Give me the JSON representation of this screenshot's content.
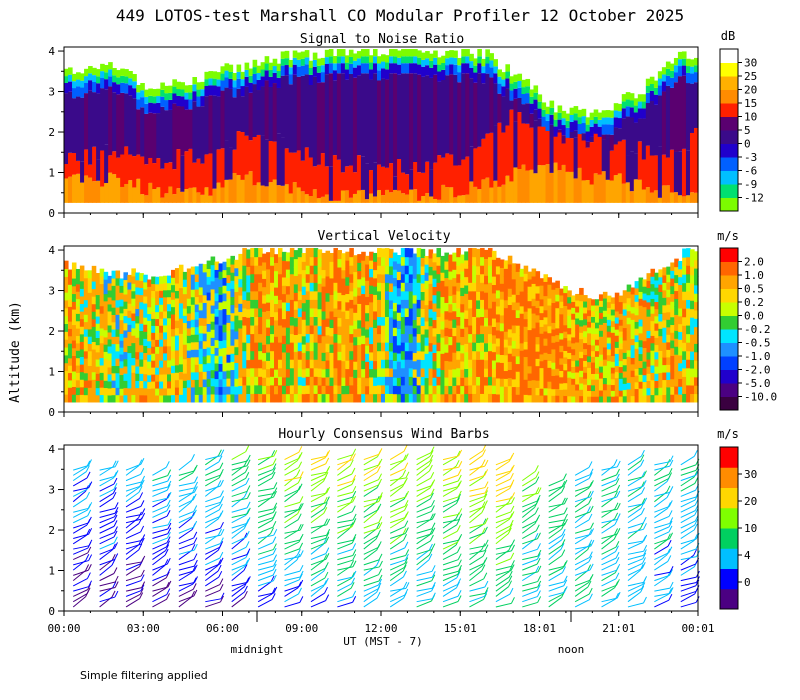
{
  "title": "449 LOTOS-test Marshall CO Modular Profiler 12 October 2025",
  "y_axis_label": "Altitude (km)",
  "x_axis": {
    "label": "UT  (MST - 7)",
    "ticks": [
      "00:00",
      "03:00",
      "06:00",
      "09:00",
      "12:00",
      "15:01",
      "18:01",
      "21:01",
      "00:01"
    ],
    "sublabels": [
      "midnight",
      "noon"
    ]
  },
  "footnote": "Simple filtering applied",
  "chart_data": [
    {
      "type": "heatmap",
      "name": "snr",
      "title": "Signal to Noise Ratio",
      "ylabel": "Altitude (km)",
      "ylim": [
        0,
        4.1
      ],
      "yticks": [
        "0",
        "1",
        "2",
        "3",
        "4"
      ],
      "colorbar": {
        "unit": "dB",
        "labels": [
          "-12",
          "-9",
          "-6",
          "-3",
          "0",
          "5",
          "10",
          "15",
          "20",
          "25",
          "30"
        ],
        "colors": [
          "#7cfc00",
          "#00e070",
          "#00bfff",
          "#0060ff",
          "#2000cc",
          "#3a0a8a",
          "#5a0070",
          "#ff2000",
          "#ff8c00",
          "#ffb000",
          "#ffff00",
          "#ffffff"
        ]
      },
      "profile": {
        "hours": [
          0,
          1,
          2,
          3,
          4,
          5,
          6,
          7,
          8,
          9,
          10,
          11,
          12,
          13,
          14,
          15,
          16,
          17,
          18,
          19,
          20,
          21,
          22,
          23,
          24
        ],
        "top_km": [
          3.5,
          3.6,
          3.7,
          3.2,
          3.1,
          3.3,
          3.5,
          3.7,
          3.8,
          3.9,
          4.0,
          4.0,
          4.0,
          4.0,
          4.0,
          4.0,
          3.9,
          3.5,
          2.9,
          2.5,
          2.5,
          2.7,
          3.1,
          3.8,
          4.0
        ],
        "red_top_km": [
          1.3,
          1.4,
          1.5,
          1.4,
          1.3,
          1.4,
          1.6,
          1.9,
          2.0,
          1.5,
          1.3,
          1.2,
          1.1,
          1.1,
          1.2,
          1.4,
          1.8,
          2.4,
          2.2,
          1.9,
          1.8,
          1.7,
          1.5,
          1.6,
          1.9
        ],
        "orange_top_km": [
          0.8,
          0.8,
          0.9,
          0.6,
          0.5,
          0.5,
          0.7,
          0.9,
          0.8,
          0.5,
          0.4,
          0.4,
          0.4,
          0.4,
          0.5,
          0.6,
          0.7,
          0.9,
          1.2,
          1.0,
          0.9,
          0.8,
          0.6,
          0.5,
          0.7
        ]
      }
    },
    {
      "type": "heatmap",
      "name": "velocity",
      "title": "Vertical Velocity",
      "ylim": [
        0,
        4.1
      ],
      "yticks": [
        "0",
        "1",
        "2",
        "3",
        "4"
      ],
      "colorbar": {
        "unit": "m/s",
        "labels": [
          "-10.0",
          "-5.0",
          "-2.0",
          "-1.0",
          "-0.5",
          "-0.2",
          "0.0",
          "0.2",
          "0.5",
          "1.0",
          "2.0"
        ],
        "colors": [
          "#3a0040",
          "#4b0082",
          "#2000cc",
          "#0040ff",
          "#1e90ff",
          "#00e5ff",
          "#32cd32",
          "#c8ff00",
          "#ffd700",
          "#ffa500",
          "#ff6600",
          "#ff0000"
        ]
      },
      "profile": {
        "hours": [
          0,
          1,
          2,
          3,
          4,
          5,
          6,
          7,
          8,
          9,
          10,
          11,
          12,
          13,
          14,
          15,
          16,
          17,
          18,
          19,
          20,
          21,
          22,
          23,
          24
        ],
        "top_km": [
          3.7,
          3.5,
          3.4,
          3.4,
          3.5,
          3.6,
          3.8,
          4.0,
          4.0,
          4.0,
          4.0,
          4.0,
          4.0,
          4.0,
          4.0,
          4.0,
          4.0,
          3.8,
          3.4,
          3.0,
          2.9,
          3.0,
          3.3,
          3.8,
          4.0
        ],
        "mean_ms": [
          0.6,
          0.4,
          0.1,
          0.3,
          0.4,
          0.0,
          -0.5,
          0.5,
          0.8,
          0.3,
          0.6,
          0.7,
          0.2,
          -0.8,
          0.5,
          0.6,
          0.7,
          0.9,
          1.0,
          0.8,
          0.6,
          0.5,
          0.4,
          0.4,
          0.4
        ]
      }
    },
    {
      "type": "scatter",
      "name": "wind_barbs",
      "title": "Hourly Consensus Wind Barbs",
      "ylim": [
        0,
        4.1
      ],
      "yticks": [
        "0",
        "1",
        "2",
        "3",
        "4"
      ],
      "colorbar": {
        "unit": "m/s",
        "labels": [
          "0",
          "4",
          "10",
          "20",
          "30"
        ],
        "colors": [
          "#4b0082",
          "#0000ff",
          "#00bfff",
          "#00d060",
          "#7fff00",
          "#ffd700",
          "#ff8c00",
          "#ff0000"
        ]
      },
      "profile": {
        "hours": [
          0,
          1,
          2,
          3,
          4,
          5,
          6,
          7,
          8,
          9,
          10,
          11,
          12,
          13,
          14,
          15,
          16,
          17,
          18,
          19,
          20,
          21,
          22,
          23,
          24
        ],
        "top_km": [
          3.6,
          3.6,
          3.5,
          3.5,
          3.3,
          3.7,
          3.8,
          3.8,
          3.8,
          3.8,
          3.8,
          3.8,
          3.7,
          3.8,
          3.8,
          3.8,
          3.8,
          3.6,
          3.0,
          3.2,
          3.5,
          3.7,
          3.7,
          3.7,
          3.7
        ],
        "low_speed_ms": [
          3,
          3,
          2,
          3,
          3,
          3,
          4,
          6,
          7,
          8,
          9,
          9,
          9,
          10,
          10,
          10,
          10,
          10,
          10,
          10,
          10,
          9,
          8,
          6,
          5
        ],
        "high_speed_ms": [
          10,
          10,
          11,
          11,
          12,
          13,
          15,
          18,
          20,
          20,
          20,
          20,
          20,
          18,
          20,
          22,
          22,
          18,
          14,
          12,
          12,
          12,
          12,
          12,
          12
        ]
      }
    }
  ]
}
